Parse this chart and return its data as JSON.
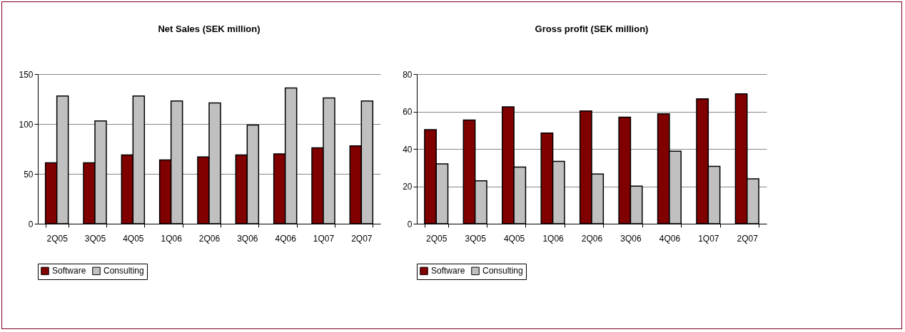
{
  "chart_data": [
    {
      "type": "bar",
      "title": "Net Sales (SEK million)",
      "categories": [
        "2Q05",
        "3Q05",
        "4Q05",
        "1Q06",
        "2Q06",
        "3Q06",
        "4Q06",
        "1Q07",
        "2Q07"
      ],
      "series": [
        {
          "name": "Software",
          "color": "#800000",
          "values": [
            61,
            61,
            69,
            64,
            67,
            69,
            70,
            76,
            78
          ]
        },
        {
          "name": "Consulting",
          "color": "#c0c0c0",
          "values": [
            128,
            103,
            128,
            123,
            121,
            99,
            136,
            126,
            123
          ]
        }
      ],
      "ylim": [
        0,
        150
      ],
      "yticks": [
        0,
        50,
        100,
        150
      ],
      "grid": "y",
      "legend": "bottom"
    },
    {
      "type": "bar",
      "title": "Gross profit (SEK million)",
      "categories": [
        "2Q05",
        "3Q05",
        "4Q05",
        "1Q06",
        "2Q06",
        "3Q06",
        "4Q06",
        "1Q07",
        "2Q07"
      ],
      "series": [
        {
          "name": "Software",
          "color": "#800000",
          "values": [
            50.3,
            55.4,
            62.5,
            48.5,
            60.3,
            57.0,
            58.8,
            66.8,
            69.4
          ]
        },
        {
          "name": "Consulting",
          "color": "#c0c0c0",
          "values": [
            32.0,
            23.0,
            30.3,
            33.3,
            26.6,
            20.1,
            38.8,
            30.7,
            24.0
          ]
        }
      ],
      "ylim": [
        0,
        80
      ],
      "yticks": [
        0,
        20,
        40,
        60,
        80
      ],
      "grid": "y",
      "legend": "bottom"
    }
  ]
}
